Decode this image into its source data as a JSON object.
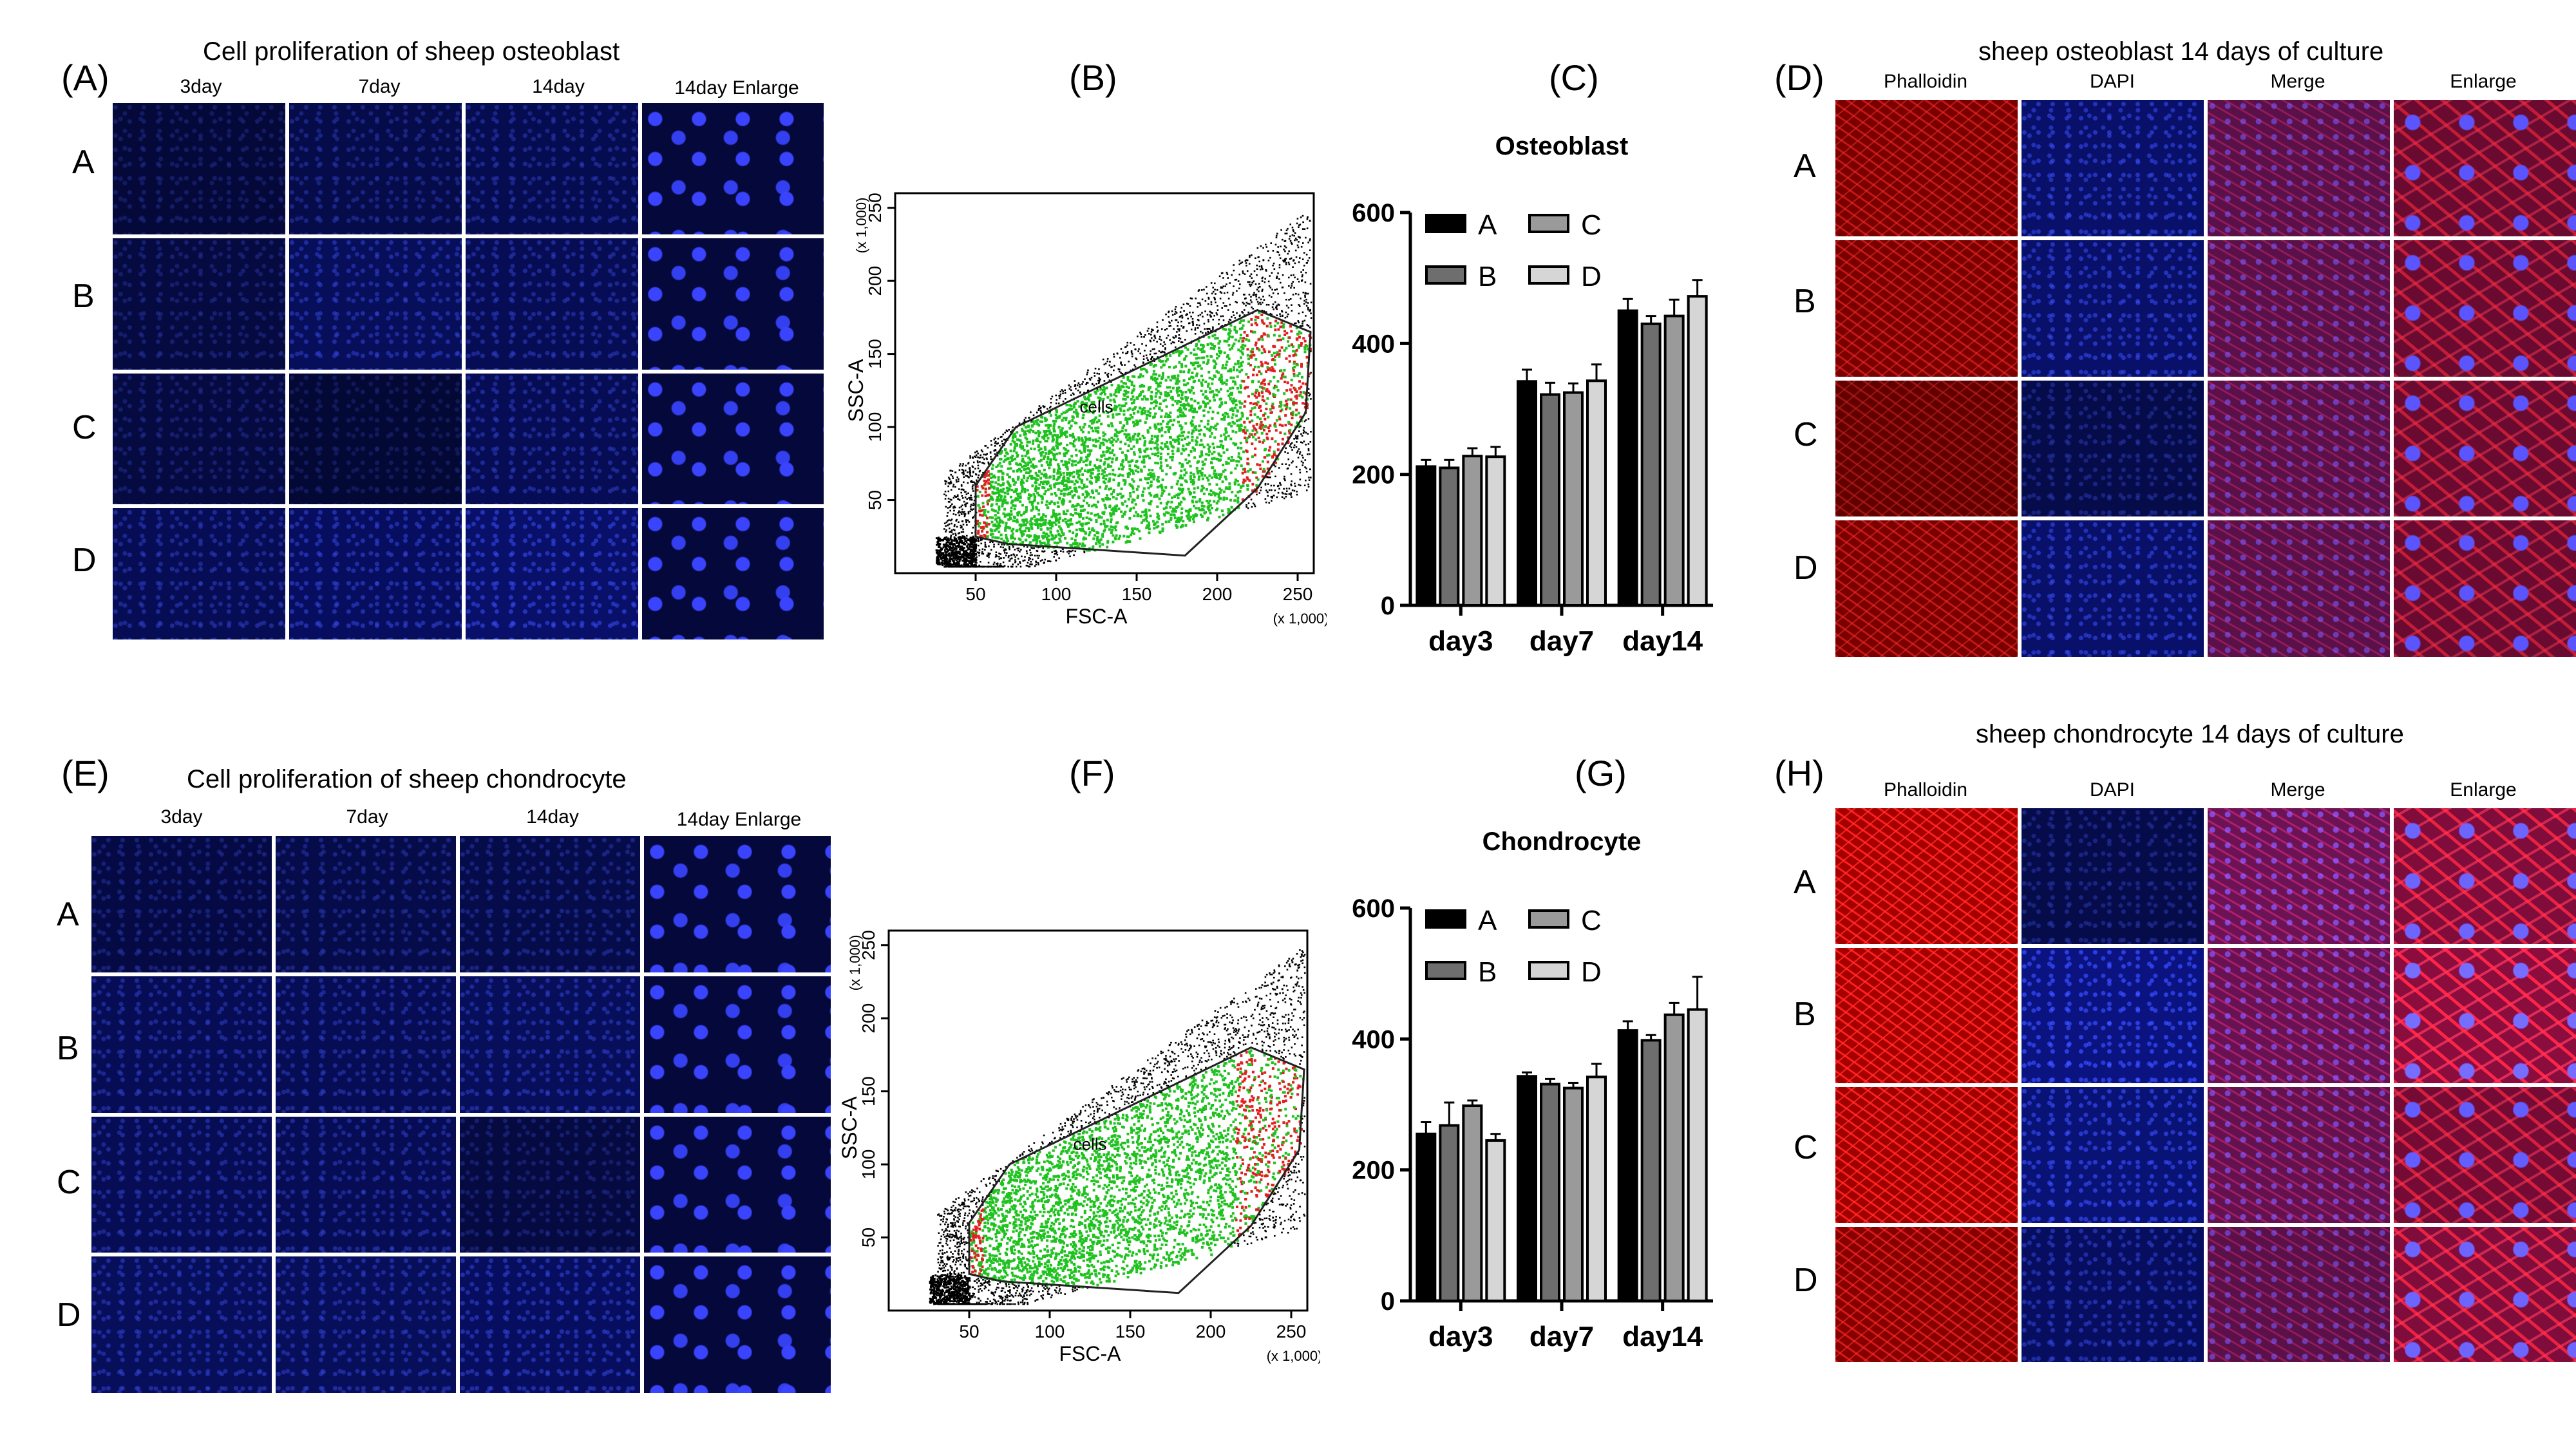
{
  "panelA": {
    "label": "(A)",
    "title": "Cell proliferation of sheep osteoblast",
    "columns": [
      "3day",
      "7day",
      "14day",
      "14day Enlarge"
    ],
    "rows": [
      "A",
      "B",
      "C",
      "D"
    ]
  },
  "panelB": {
    "label": "(B)"
  },
  "panelC": {
    "label": "(C)"
  },
  "panelD": {
    "label": "(D)",
    "title": "sheep osteoblast 14 days of culture",
    "columns": [
      "Phalloidin",
      "DAPI",
      "Merge",
      "Enlarge"
    ],
    "rows": [
      "A",
      "B",
      "C",
      "D"
    ]
  },
  "panelE": {
    "label": "(E)",
    "title": "Cell proliferation of sheep chondrocyte",
    "columns": [
      "3day",
      "7day",
      "14day",
      "14day Enlarge"
    ],
    "rows": [
      "A",
      "B",
      "C",
      "D"
    ]
  },
  "panelF": {
    "label": "(F)"
  },
  "panelG": {
    "label": "(G)"
  },
  "panelH": {
    "label": "(H)",
    "title": "sheep chondrocyte 14 days of culture",
    "columns": [
      "Phalloidin",
      "DAPI",
      "Merge",
      "Enlarge"
    ],
    "rows": [
      "A",
      "B",
      "C",
      "D"
    ]
  },
  "flow": {
    "xlabel": "FSC-A",
    "ylabel": "SSC-A",
    "xunit": "(x 1,000)",
    "yunit": "(x 1,000)",
    "gate_label": "cells",
    "xticks": [
      "50",
      "100",
      "150",
      "200",
      "250"
    ],
    "yticks": [
      "50",
      "100",
      "150",
      "200",
      "250"
    ],
    "colors": {
      "cells": "#1fc21f",
      "edge": "#e02020",
      "outside": "#000000"
    }
  },
  "chart_data": [
    {
      "type": "bar",
      "title": "Osteoblast",
      "categories": [
        "day3",
        "day7",
        "day14"
      ],
      "ylim": [
        0,
        600
      ],
      "yticks": [
        0,
        200,
        400,
        600
      ],
      "legend": [
        "A",
        "C",
        "B",
        "D"
      ],
      "series": [
        {
          "name": "A",
          "color": "#000000",
          "values": [
            212,
            342,
            450
          ],
          "errors": [
            10,
            18,
            18
          ]
        },
        {
          "name": "B",
          "color": "#6e6e6e",
          "values": [
            210,
            322,
            430
          ],
          "errors": [
            12,
            18,
            12
          ]
        },
        {
          "name": "C",
          "color": "#9a9a9a",
          "values": [
            228,
            325,
            442
          ],
          "errors": [
            12,
            14,
            25
          ]
        },
        {
          "name": "D",
          "color": "#d6d6d6",
          "values": [
            227,
            343,
            472
          ],
          "errors": [
            15,
            25,
            25
          ]
        }
      ]
    },
    {
      "type": "bar",
      "title": "Chondrocyte",
      "categories": [
        "day3",
        "day7",
        "day14"
      ],
      "ylim": [
        0,
        600
      ],
      "yticks": [
        0,
        200,
        400,
        600
      ],
      "legend": [
        "A",
        "C",
        "B",
        "D"
      ],
      "series": [
        {
          "name": "A",
          "color": "#000000",
          "values": [
            255,
            343,
            413
          ],
          "errors": [
            18,
            6,
            14
          ]
        },
        {
          "name": "B",
          "color": "#6e6e6e",
          "values": [
            268,
            331,
            398
          ],
          "errors": [
            35,
            8,
            8
          ]
        },
        {
          "name": "C",
          "color": "#9a9a9a",
          "values": [
            298,
            325,
            437
          ],
          "errors": [
            8,
            8,
            18
          ]
        },
        {
          "name": "D",
          "color": "#d6d6d6",
          "values": [
            245,
            342,
            445
          ],
          "errors": [
            10,
            20,
            50
          ]
        }
      ]
    }
  ]
}
